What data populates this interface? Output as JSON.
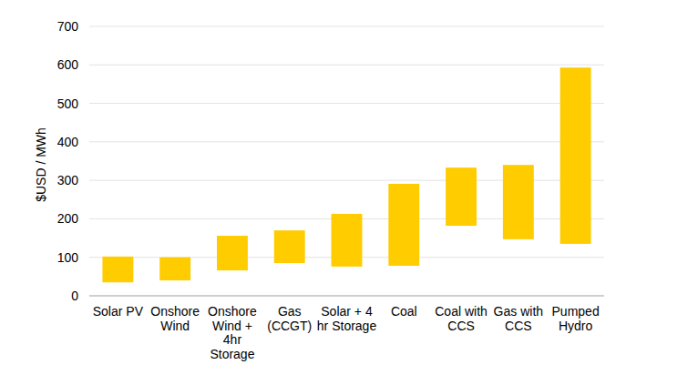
{
  "chart_data": {
    "type": "bar",
    "y_label": "$USD / MWh",
    "categories": [
      "Solar PV",
      "Onshore\nWind",
      "Onshore\nWind +\n4hr\nStorage",
      "Gas\n(CCGT)",
      "Solar + 4\nhr Storage",
      "Coal",
      "Coal with\nCCS",
      "Gas with\nCCS",
      "Pumped\nHydro"
    ],
    "values": [
      [
        35,
        102
      ],
      [
        40,
        100
      ],
      [
        66,
        156
      ],
      [
        85,
        170
      ],
      [
        76,
        213
      ],
      [
        78,
        291
      ],
      [
        182,
        333
      ],
      [
        147,
        340
      ],
      [
        135,
        593
      ]
    ],
    "color": "#ffcc00",
    "ylim": [
      0,
      700
    ],
    "yticks": [
      0,
      100,
      200,
      300,
      400,
      500,
      600,
      700
    ],
    "grid": true
  }
}
